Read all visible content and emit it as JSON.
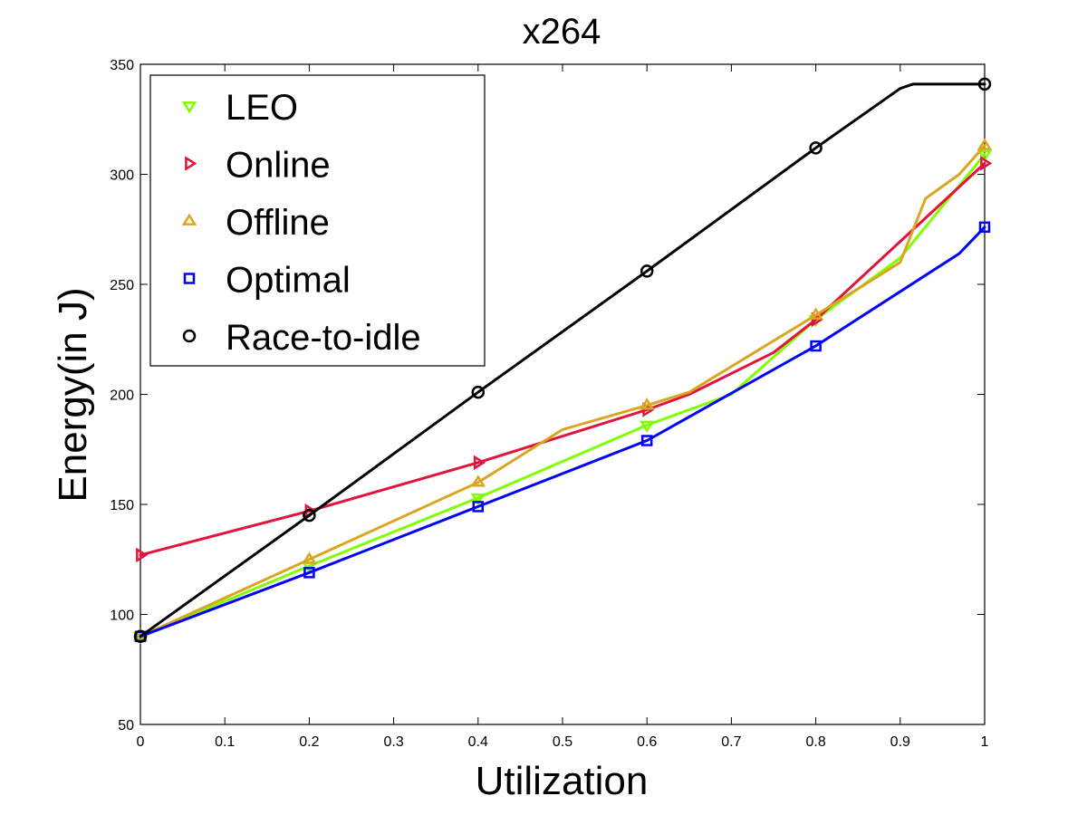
{
  "chart_data": {
    "type": "line",
    "title": "x264",
    "xlabel": "Utilization",
    "ylabel": "Energy(in J)",
    "xlim": [
      0,
      1
    ],
    "ylim": [
      50,
      350
    ],
    "xticks": [
      0,
      0.1,
      0.2,
      0.3,
      0.4,
      0.5,
      0.6,
      0.7,
      0.8,
      0.9,
      1
    ],
    "xtick_labels": [
      "0",
      "0.1",
      "0.2",
      "0.3",
      "0.4",
      "0.5",
      "0.6",
      "0.7",
      "0.8",
      "0.9",
      "1"
    ],
    "yticks": [
      50,
      100,
      150,
      200,
      250,
      300,
      350
    ],
    "ytick_labels": [
      "50",
      "100",
      "150",
      "200",
      "250",
      "300",
      "350"
    ],
    "grid": false,
    "legend_position": "top-left",
    "series": [
      {
        "name": "LEO",
        "color": "#80ff00",
        "marker": "triangle-down",
        "x": [
          0,
          0.2,
          0.4,
          0.6,
          0.7,
          0.8,
          0.9,
          1
        ],
        "y": [
          90,
          122,
          153,
          186,
          200,
          234,
          262,
          309
        ],
        "marker_x": [
          0,
          0.2,
          0.4,
          0.6,
          0.8,
          1
        ],
        "marker_y": [
          90,
          122,
          153,
          186,
          234,
          309
        ]
      },
      {
        "name": "Online",
        "color": "#e0143c",
        "marker": "triangle-right",
        "x": [
          0,
          0.2,
          0.4,
          0.6,
          0.65,
          0.75,
          0.8,
          1
        ],
        "y": [
          127,
          147,
          169,
          193,
          200,
          219,
          234,
          305
        ],
        "marker_x": [
          0,
          0.2,
          0.4,
          0.6,
          0.8,
          1
        ],
        "marker_y": [
          127,
          147,
          169,
          193,
          234,
          305
        ]
      },
      {
        "name": "Offline",
        "color": "#daa520",
        "marker": "triangle-up",
        "x": [
          0,
          0.2,
          0.4,
          0.5,
          0.6,
          0.65,
          0.8,
          0.9,
          0.93,
          0.97,
          1
        ],
        "y": [
          90,
          125,
          160,
          184,
          195,
          201,
          236,
          260,
          289,
          300,
          313
        ],
        "marker_x": [
          0,
          0.2,
          0.4,
          0.6,
          0.8,
          1
        ],
        "marker_y": [
          90,
          125,
          160,
          195,
          236,
          313
        ]
      },
      {
        "name": "Optimal",
        "color": "#0000ff",
        "marker": "square",
        "x": [
          0,
          0.2,
          0.4,
          0.6,
          0.8,
          0.97,
          1
        ],
        "y": [
          90,
          119,
          149,
          179,
          222,
          264,
          276
        ],
        "marker_x": [
          0,
          0.2,
          0.4,
          0.6,
          0.8,
          1
        ],
        "marker_y": [
          90,
          119,
          149,
          179,
          222,
          276
        ]
      },
      {
        "name": "Race-to-idle",
        "color": "#000000",
        "marker": "circle",
        "x": [
          0,
          0.2,
          0.4,
          0.6,
          0.8,
          0.9,
          0.915,
          1
        ],
        "y": [
          90,
          145,
          201,
          256,
          312,
          339,
          341,
          341
        ],
        "marker_x": [
          0,
          0.2,
          0.4,
          0.6,
          0.8,
          1
        ],
        "marker_y": [
          90,
          145,
          201,
          256,
          312,
          341
        ]
      }
    ]
  }
}
